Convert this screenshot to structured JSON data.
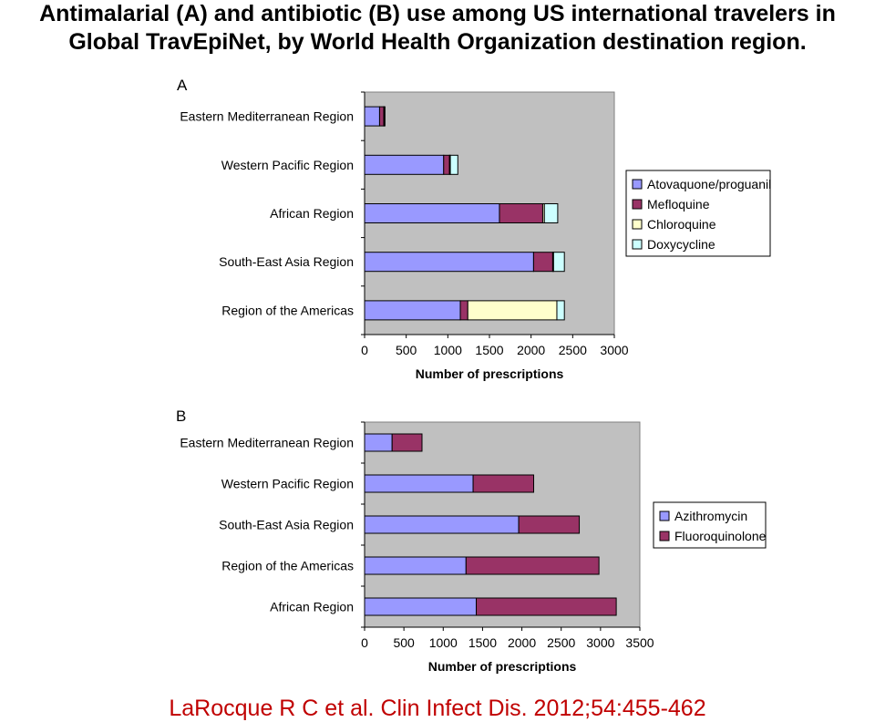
{
  "title_line1": "Antimalarial (A) and antibiotic (B) use among US international travelers in",
  "title_line2": "Global TravEpiNet, by World Health Organization destination region.",
  "citation": "LaRocque R C et al. Clin Infect Dis. 2012;54:455-462",
  "colors": {
    "plot_bg": "#c0c0c0",
    "series": [
      "#9999ff",
      "#993366",
      "#ffffcc",
      "#ccffff"
    ]
  },
  "chart_data": [
    {
      "panel": "A",
      "type": "bar",
      "orientation": "horizontal",
      "stacked": true,
      "categories": [
        "Eastern Mediterranean Region",
        "Western Pacific Region",
        "African Region",
        "South-East Asia Region",
        "Region of the Americas"
      ],
      "series": [
        {
          "name": "Atovaquone/proguanil",
          "color": "#9999ff",
          "values": [
            180,
            950,
            1620,
            2030,
            1150
          ]
        },
        {
          "name": "Mefloquine",
          "color": "#993366",
          "values": [
            50,
            70,
            520,
            230,
            90
          ]
        },
        {
          "name": "Chloroquine",
          "color": "#ffffcc",
          "values": [
            5,
            10,
            20,
            10,
            1070
          ]
        },
        {
          "name": "Doxycycline",
          "color": "#ccffff",
          "values": [
            10,
            90,
            160,
            130,
            90
          ]
        }
      ],
      "xlabel": "Number of prescriptions",
      "xlim": [
        0,
        3000
      ],
      "xticks": [
        "0",
        "500",
        "1000",
        "1500",
        "2000",
        "2500",
        "3000"
      ],
      "legend": "right"
    },
    {
      "panel": "B",
      "type": "bar",
      "orientation": "horizontal",
      "stacked": true,
      "categories": [
        "Eastern Mediterranean Region",
        "Western Pacific Region",
        "South-East Asia Region",
        "Region of the Americas",
        "African Region"
      ],
      "series": [
        {
          "name": "Azithromycin",
          "color": "#9999ff",
          "values": [
            350,
            1380,
            1960,
            1290,
            1420
          ]
        },
        {
          "name": "Fluoroquinolone",
          "color": "#993366",
          "values": [
            380,
            770,
            770,
            1690,
            1780
          ]
        }
      ],
      "xlabel": "Number of prescriptions",
      "xlim": [
        0,
        3500
      ],
      "xticks": [
        "0",
        "500",
        "1000",
        "1500",
        "2000",
        "2500",
        "3000",
        "3500"
      ],
      "legend": "right"
    }
  ]
}
